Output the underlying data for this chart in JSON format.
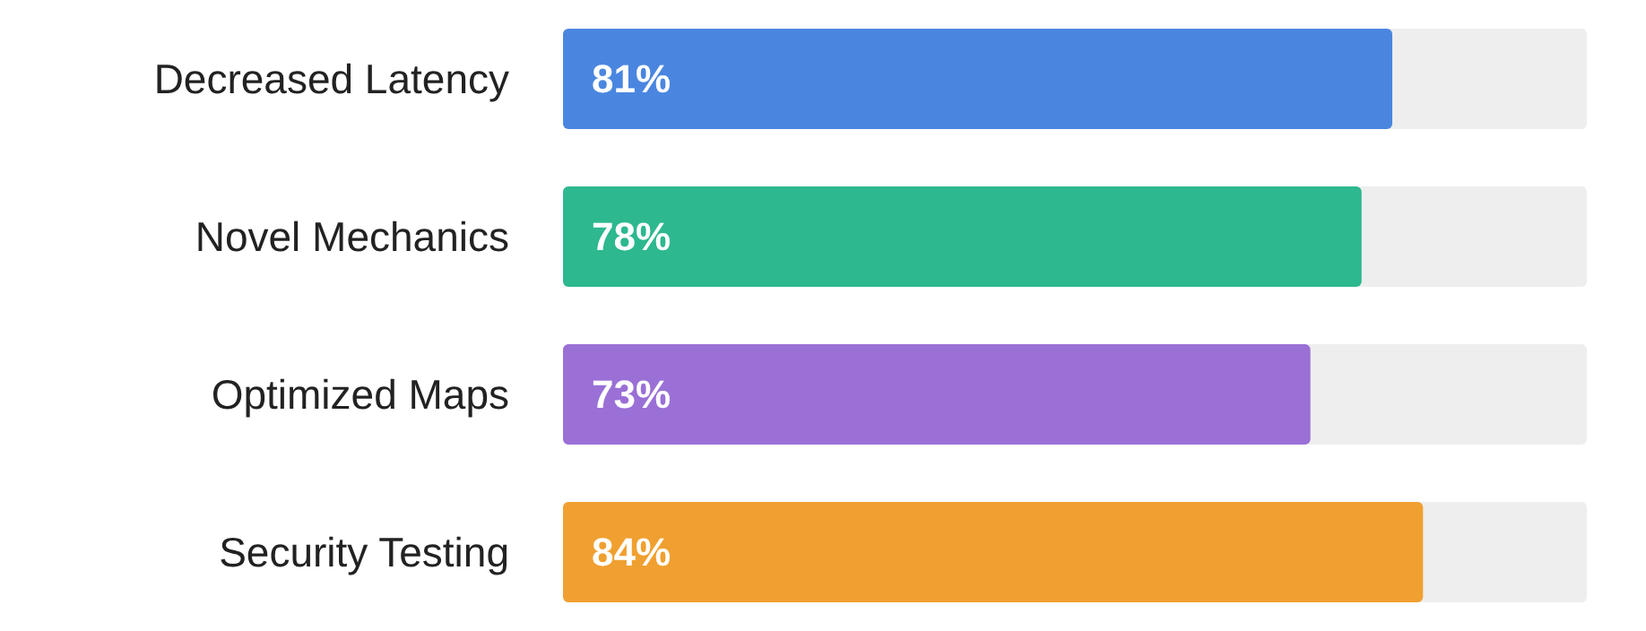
{
  "chart_data": {
    "type": "bar",
    "orientation": "horizontal",
    "categories": [
      "Decreased Latency",
      "Novel Mechanics",
      "Optimized Maps",
      "Security Testing"
    ],
    "values": [
      81,
      78,
      73,
      84
    ],
    "value_labels": [
      "81%",
      "78%",
      "73%",
      "84%"
    ],
    "colors": [
      "#4a86e0",
      "#2db88f",
      "#9a70d6",
      "#f0a030"
    ],
    "xlim": [
      0,
      100
    ]
  }
}
